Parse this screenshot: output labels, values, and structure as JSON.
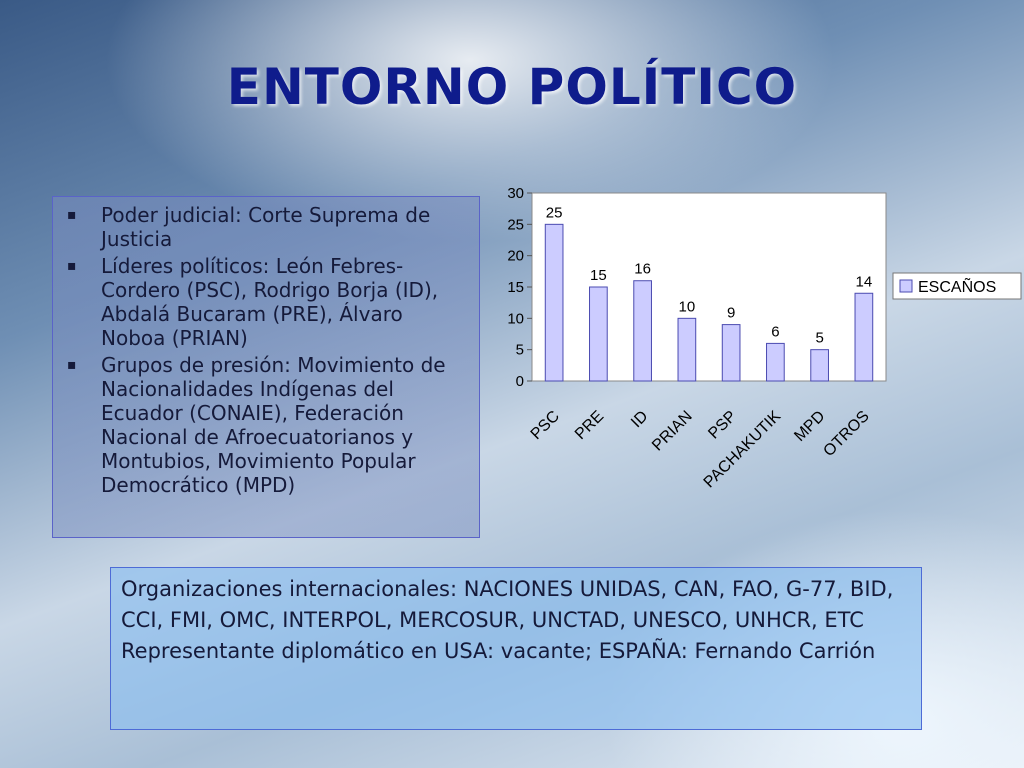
{
  "slide": {
    "title": "ENTORNO POLÍTICO"
  },
  "left_panel": {
    "items": [
      {
        "bullet": "▪",
        "text": "Poder judicial: Corte Suprema de Justicia"
      },
      {
        "bullet": "▪",
        "text": "Líderes políticos: León Febres-Cordero (PSC), Rodrigo Borja (ID), Abdalá Bucaram (PRE), Álvaro Noboa (PRIAN)"
      },
      {
        "bullet": "▪",
        "text": "Grupos de presión: Movimiento de Nacionalidades Indígenas del Ecuador (CONAIE), Federación Nacional de Afroecuatorianos y Montubios, Movimiento Popular Democrático (MPD)"
      }
    ]
  },
  "bottom_panel": {
    "lines": [
      "Organizaciones internacionales: NACIONES UNIDAS, CAN, FAO, G-77, BID, CCI, FMI, OMC, INTERPOL, MERCOSUR, UNCTAD, UNESCO, UNHCR, ETC",
      "Representante diplomático en USA: vacante; ESPAÑA: Fernando Carrión"
    ]
  },
  "chart_data": {
    "type": "bar",
    "categories": [
      "PSC",
      "PRE",
      "ID",
      "PRIAN",
      "PSP",
      "PACHAKUTIK",
      "MPD",
      "OTROS"
    ],
    "series": [
      {
        "name": "ESCAÑOS",
        "values": [
          25,
          15,
          16,
          10,
          9,
          6,
          5,
          14
        ]
      }
    ],
    "ylim": [
      0,
      30
    ],
    "yticks": [
      0,
      5,
      10,
      15,
      20,
      25,
      30
    ],
    "bar_color": "#ccccff",
    "bar_stroke": "#4b4bb0",
    "legend_position": "right",
    "data_labels": true,
    "grid": false
  }
}
